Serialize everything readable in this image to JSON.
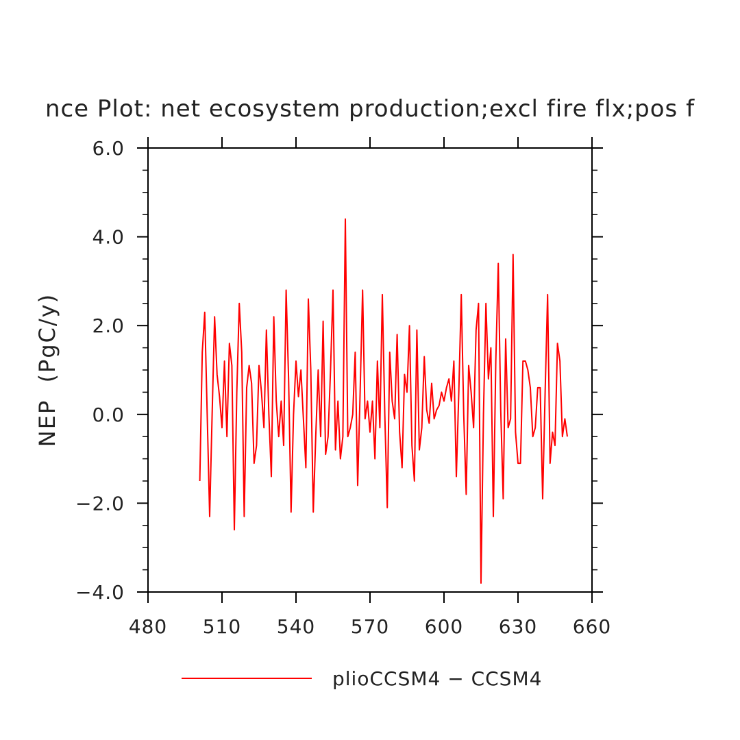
{
  "chart_data": {
    "type": "line",
    "title": "nce Plot: net ecosystem production;excl fire flx;pos f",
    "xlabel": "",
    "ylabel": "NEP  (PgC/y)",
    "xlim": [
      480,
      660
    ],
    "ylim": [
      -4.0,
      6.0
    ],
    "x_ticks": [
      480,
      510,
      540,
      570,
      600,
      630,
      660
    ],
    "y_ticks": [
      -4.0,
      -2.0,
      0.0,
      2.0,
      4.0,
      6.0
    ],
    "x_tick_labels": [
      "480",
      "510",
      "540",
      "570",
      "600",
      "630",
      "660"
    ],
    "y_tick_labels": [
      "−4.0",
      "−2.0",
      "0.0",
      "2.0",
      "4.0",
      "6.0"
    ],
    "grid": false,
    "legend_position": "bottom",
    "series": [
      {
        "name": "plioCCSM4 − CCSM4",
        "color": "#ff0000",
        "x": [
          501,
          502,
          503,
          504,
          505,
          506,
          507,
          508,
          509,
          510,
          511,
          512,
          513,
          514,
          515,
          516,
          517,
          518,
          519,
          520,
          521,
          522,
          523,
          524,
          525,
          526,
          527,
          528,
          529,
          530,
          531,
          532,
          533,
          534,
          535,
          536,
          537,
          538,
          539,
          540,
          541,
          542,
          543,
          544,
          545,
          546,
          547,
          548,
          549,
          550,
          551,
          552,
          553,
          554,
          555,
          556,
          557,
          558,
          559,
          560,
          561,
          562,
          563,
          564,
          565,
          566,
          567,
          568,
          569,
          570,
          571,
          572,
          573,
          574,
          575,
          576,
          577,
          578,
          579,
          580,
          581,
          582,
          583,
          584,
          585,
          586,
          587,
          588,
          589,
          590,
          591,
          592,
          593,
          594,
          595,
          596,
          597,
          598,
          599,
          600,
          601,
          602,
          603,
          604,
          605,
          606,
          607,
          608,
          609,
          610,
          611,
          612,
          613,
          614,
          615,
          616,
          617,
          618,
          619,
          620,
          621,
          622,
          623,
          624,
          625,
          626,
          627,
          628,
          629,
          630,
          631,
          632,
          633,
          634,
          635,
          636,
          637,
          638,
          639,
          640,
          641,
          642,
          643,
          644,
          645,
          646,
          647,
          648,
          649,
          650
        ],
        "y": [
          -1.5,
          1.4,
          2.3,
          0.0,
          -2.3,
          0.0,
          2.2,
          0.9,
          0.4,
          -0.3,
          1.2,
          -0.5,
          1.6,
          1.1,
          -2.6,
          0.5,
          2.5,
          1.4,
          -2.3,
          0.6,
          1.1,
          0.7,
          -1.1,
          -0.7,
          1.1,
          0.5,
          -0.3,
          1.9,
          0.0,
          -1.4,
          2.2,
          0.3,
          -0.5,
          0.3,
          -0.7,
          2.8,
          0.8,
          -2.2,
          0.0,
          1.2,
          0.4,
          1.0,
          -0.1,
          -1.2,
          2.6,
          1.0,
          -2.2,
          -0.5,
          1.0,
          -0.5,
          2.1,
          -0.9,
          -0.5,
          1.0,
          2.8,
          -0.8,
          0.3,
          -1.0,
          -0.5,
          4.4,
          -0.5,
          -0.3,
          0.0,
          1.4,
          -1.6,
          0.5,
          2.8,
          -0.1,
          0.3,
          -0.4,
          0.3,
          -1.0,
          1.2,
          -0.3,
          2.7,
          0.0,
          -2.1,
          1.4,
          0.3,
          -0.1,
          1.8,
          -0.4,
          -1.2,
          0.9,
          0.5,
          2.0,
          -0.7,
          -1.5,
          1.9,
          -0.8,
          -0.3,
          1.3,
          0.1,
          -0.2,
          0.7,
          -0.1,
          0.1,
          0.2,
          0.5,
          0.3,
          0.6,
          0.8,
          0.3,
          1.2,
          -1.4,
          0.5,
          2.7,
          0.0,
          -1.8,
          1.1,
          0.5,
          -0.3,
          1.9,
          2.5,
          -3.8,
          0.0,
          2.5,
          0.8,
          1.5,
          -2.3,
          1.2,
          3.4,
          0.1,
          -1.9,
          1.7,
          -0.3,
          -0.1,
          3.6,
          -0.4,
          -1.1,
          -1.1,
          1.2,
          1.2,
          1.0,
          0.6,
          -0.5,
          -0.3,
          0.6,
          0.6,
          -1.9,
          0.5,
          2.7,
          -1.1,
          -0.4,
          -0.7,
          1.6,
          1.2,
          -0.5,
          -0.1,
          -0.5
        ]
      }
    ]
  }
}
